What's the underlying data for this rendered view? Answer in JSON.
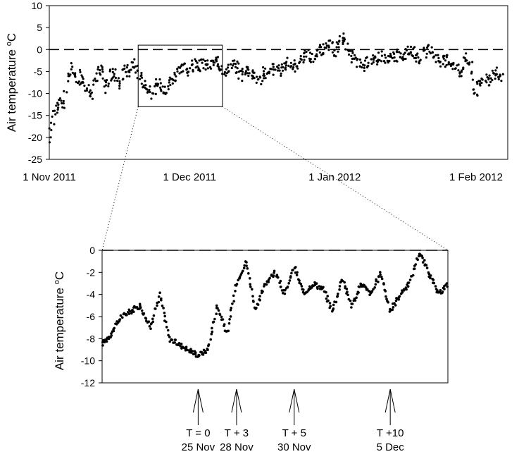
{
  "chart_data": [
    {
      "type": "scatter",
      "panel": "top",
      "title": "",
      "ylabel": "Air temperature",
      "ylabel_unit": "oC",
      "ylabel_unit_sup": "o",
      "ylabel_unit_base": "C",
      "ylim": [
        -25,
        10
      ],
      "yticks": [
        10,
        5,
        0,
        -5,
        -10,
        -15,
        -20,
        -25
      ],
      "xlim": [
        "2011-11-01",
        "2012-02-07"
      ],
      "x_tick_labels": [
        {
          "date": "2011-11-01",
          "label": "1 Nov 2011"
        },
        {
          "date": "2011-12-01",
          "label": "1 Dec 2011"
        },
        {
          "date": "2012-01-01",
          "label": "1 Jan 2012"
        },
        {
          "date": "2012-02-01",
          "label": "1 Feb 2012"
        }
      ],
      "reference_line": {
        "y": 0,
        "style": "dashed"
      },
      "zoom_box": {
        "x0": "2011-11-20",
        "x1": "2011-12-08",
        "y0": -13,
        "y1": 1
      },
      "grid": false,
      "legend": "none",
      "series": [
        {
          "x": [
            "2011-11-01",
            "2011-11-02",
            "2011-11-03",
            "2011-11-04",
            "2011-11-05",
            "2011-11-06",
            "2011-11-07",
            "2011-11-08",
            "2011-11-09",
            "2011-11-10",
            "2011-11-11",
            "2011-11-12",
            "2011-11-13",
            "2011-11-14",
            "2011-11-15",
            "2011-11-16",
            "2011-11-17",
            "2011-11-18",
            "2011-11-19",
            "2011-11-20",
            "2011-11-21",
            "2011-11-22",
            "2011-11-23",
            "2011-11-24",
            "2011-11-25",
            "2011-11-26",
            "2011-11-27",
            "2011-11-28",
            "2011-11-29",
            "2011-11-30",
            "2011-12-01",
            "2011-12-02",
            "2011-12-03",
            "2011-12-04",
            "2011-12-05",
            "2011-12-06",
            "2011-12-07",
            "2011-12-08",
            "2011-12-09",
            "2011-12-10",
            "2011-12-11",
            "2011-12-12",
            "2011-12-13",
            "2011-12-14",
            "2011-12-15",
            "2011-12-16",
            "2011-12-17",
            "2011-12-18",
            "2011-12-19",
            "2011-12-20",
            "2011-12-21",
            "2011-12-22",
            "2011-12-23",
            "2011-12-24",
            "2011-12-25",
            "2011-12-26",
            "2011-12-27",
            "2011-12-28",
            "2011-12-29",
            "2011-12-30",
            "2011-12-31",
            "2012-01-01",
            "2012-01-02",
            "2012-01-03",
            "2012-01-04",
            "2012-01-05",
            "2012-01-06",
            "2012-01-07",
            "2012-01-08",
            "2012-01-09",
            "2012-01-10",
            "2012-01-11",
            "2012-01-12",
            "2012-01-13",
            "2012-01-14",
            "2012-01-15",
            "2012-01-16",
            "2012-01-17",
            "2012-01-18",
            "2012-01-19",
            "2012-01-20",
            "2012-01-21",
            "2012-01-22",
            "2012-01-23",
            "2012-01-24",
            "2012-01-25",
            "2012-01-26",
            "2012-01-27",
            "2012-01-28",
            "2012-01-29",
            "2012-01-30",
            "2012-01-31",
            "2012-02-01",
            "2012-02-02",
            "2012-02-03",
            "2012-02-04",
            "2012-02-05",
            "2012-02-06"
          ],
          "y": [
            -21,
            -14,
            -12,
            -13,
            -6,
            -4,
            -8,
            -5,
            -9,
            -10,
            -6,
            -4,
            -9,
            -6,
            -5,
            -8,
            -4,
            -5,
            -3,
            -5,
            -7,
            -9,
            -10,
            -8,
            -8,
            -9,
            -7,
            -6,
            -5,
            -4,
            -5,
            -3,
            -4,
            -3,
            -4,
            -3,
            -3,
            -4,
            -5,
            -3,
            -4,
            -6,
            -4,
            -5,
            -6,
            -7,
            -5,
            -6,
            -4,
            -5,
            -4,
            -3,
            -4,
            -3,
            -2,
            -1,
            -2,
            -1,
            0,
            0,
            1,
            -1,
            2,
            3,
            -1,
            -2,
            -3,
            -4,
            -3,
            -2,
            -3,
            -1,
            -3,
            -2,
            -1,
            -2,
            -1,
            0,
            -1,
            -2,
            -1,
            0,
            -1,
            -2,
            -3,
            -2,
            -3,
            -4,
            -5,
            -2,
            -3,
            -10,
            -8,
            -6,
            -7,
            -5,
            -6,
            -7
          ]
        }
      ]
    },
    {
      "type": "scatter",
      "panel": "bottom",
      "title": "",
      "ylabel": "Air temperature",
      "ylabel_unit": "oC",
      "ylabel_unit_sup": "o",
      "ylabel_unit_base": "C",
      "ylim": [
        -12,
        0
      ],
      "yticks": [
        0,
        -2,
        -4,
        -6,
        -8,
        -10,
        -12
      ],
      "xlim": [
        "2011-11-20",
        "2011-12-08"
      ],
      "reference_line": {
        "y": 0,
        "style": "dashed"
      },
      "grid": false,
      "legend": "none",
      "series": [
        {
          "x": [
            "2011-11-20",
            "2011-11-20 12:00",
            "2011-11-21",
            "2011-11-21 12:00",
            "2011-11-22",
            "2011-11-22 12:00",
            "2011-11-23",
            "2011-11-23 12:00",
            "2011-11-24",
            "2011-11-24 12:00",
            "2011-11-25",
            "2011-11-25 12:00",
            "2011-11-26",
            "2011-11-26 12:00",
            "2011-11-27",
            "2011-11-27 12:00",
            "2011-11-28",
            "2011-11-28 12:00",
            "2011-11-29",
            "2011-11-29 12:00",
            "2011-11-30",
            "2011-11-30 12:00",
            "2011-12-01",
            "2011-12-01 12:00",
            "2011-12-02",
            "2011-12-02 12:00",
            "2011-12-03",
            "2011-12-03 12:00",
            "2011-12-04",
            "2011-12-04 12:00",
            "2011-12-05",
            "2011-12-05 12:00",
            "2011-12-06",
            "2011-12-06 12:00",
            "2011-12-07",
            "2011-12-07 12:00",
            "2011-12-08"
          ],
          "y": [
            -8.5,
            -7.5,
            -6,
            -5.5,
            -5,
            -7,
            -4,
            -8,
            -8.5,
            -9,
            -9.5,
            -9,
            -5,
            -7.5,
            -3,
            -1,
            -5.5,
            -3,
            -2,
            -4,
            -1.5,
            -4,
            -3,
            -3.5,
            -5.5,
            -2.5,
            -5,
            -3,
            -4,
            -2,
            -5.5,
            -4,
            -3,
            -0.2,
            -2,
            -4,
            -3
          ]
        }
      ]
    }
  ],
  "annotations": [
    {
      "line1": "T = 0",
      "line2": "25 Nov",
      "date": "2011-11-25"
    },
    {
      "line1": "T + 3",
      "line2": "28 Nov",
      "date": "2011-11-27"
    },
    {
      "line1": "T + 5",
      "line2": "30 Nov",
      "date": "2011-11-30"
    },
    {
      "line1": "T +10",
      "line2": "5 Dec",
      "date": "2011-12-05"
    }
  ]
}
